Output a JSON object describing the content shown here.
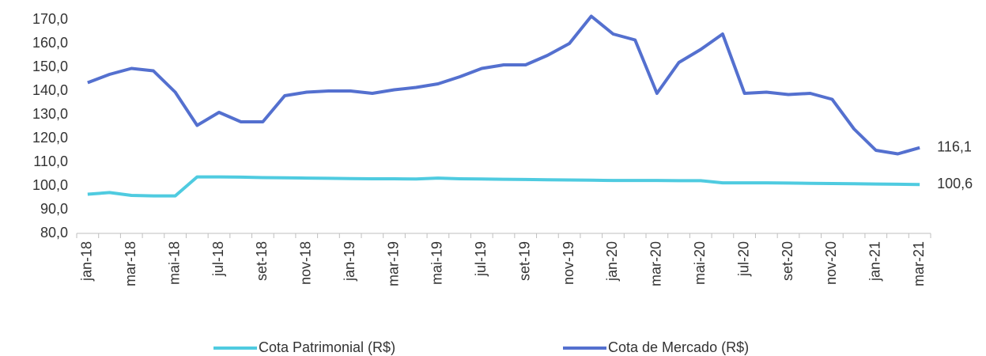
{
  "chart_data": {
    "type": "line",
    "categories": [
      "jan-18",
      null,
      "mar-18",
      null,
      "mai-18",
      null,
      "jul-18",
      null,
      "set-18",
      null,
      "nov-18",
      null,
      "jan-19",
      null,
      "mar-19",
      null,
      "mai-19",
      null,
      "jul-19",
      null,
      "set-19",
      null,
      "nov-19",
      null,
      "jan-20",
      null,
      "mar-20",
      null,
      "mai-20",
      null,
      "jul-20",
      null,
      "set-20",
      null,
      "nov-20",
      null,
      "jan-21",
      null,
      "mar-21"
    ],
    "series": [
      {
        "name": "Cota Patrimonial (R$)",
        "color": "#4fcbe0",
        "values": [
          96.5,
          97.2,
          96,
          95.8,
          95.8,
          103.8,
          103.8,
          103.7,
          103.5,
          103.4,
          103.3,
          103.2,
          103.1,
          103,
          103,
          102.9,
          103.3,
          103,
          102.9,
          102.8,
          102.7,
          102.6,
          102.5,
          102.4,
          102.3,
          102.3,
          102.3,
          102.2,
          102.2,
          101.3,
          101.3,
          101.3,
          101.2,
          101.1,
          101,
          100.9,
          100.8,
          100.7,
          100.6
        ],
        "value_labels": [
          null,
          null,
          null,
          null,
          null,
          null,
          null,
          null,
          null,
          null,
          null,
          null,
          null,
          null,
          null,
          null,
          null,
          null,
          null,
          null,
          null,
          null,
          null,
          null,
          null,
          null,
          null,
          null,
          null,
          null,
          null,
          null,
          null,
          null,
          null,
          null,
          null,
          null,
          "100,6"
        ]
      },
      {
        "name": "Cota de Mercado (R$)",
        "color": "#5470cf",
        "values": [
          143.5,
          147,
          149.5,
          148.5,
          139.5,
          125.5,
          131,
          127,
          127,
          138,
          139.5,
          140,
          140,
          139,
          140.5,
          141.5,
          143,
          146,
          149.5,
          151,
          151,
          155,
          160,
          171.5,
          164,
          161.5,
          139,
          152,
          157.5,
          164,
          139,
          139.5,
          138.5,
          139,
          136.5,
          124,
          115,
          113.5,
          116.1
        ],
        "value_labels": [
          null,
          null,
          null,
          null,
          null,
          null,
          null,
          null,
          null,
          null,
          null,
          null,
          null,
          null,
          null,
          null,
          null,
          null,
          null,
          null,
          null,
          null,
          null,
          null,
          null,
          null,
          null,
          null,
          null,
          null,
          null,
          null,
          null,
          null,
          null,
          null,
          null,
          null,
          "116,1"
        ]
      }
    ],
    "ylim": [
      80,
      170
    ],
    "yticks": [
      {
        "value": 80,
        "label": "80,0"
      },
      {
        "value": 90,
        "label": "90,0"
      },
      {
        "value": 100,
        "label": "100,0"
      },
      {
        "value": 110,
        "label": "110,0"
      },
      {
        "value": 120,
        "label": "120,0"
      },
      {
        "value": 130,
        "label": "130,0"
      },
      {
        "value": 140,
        "label": "140,0"
      },
      {
        "value": 150,
        "label": "150,0"
      },
      {
        "value": 160,
        "label": "160,0"
      },
      {
        "value": 170,
        "label": "170,0"
      }
    ],
    "grid": false,
    "legend": "bottom"
  }
}
